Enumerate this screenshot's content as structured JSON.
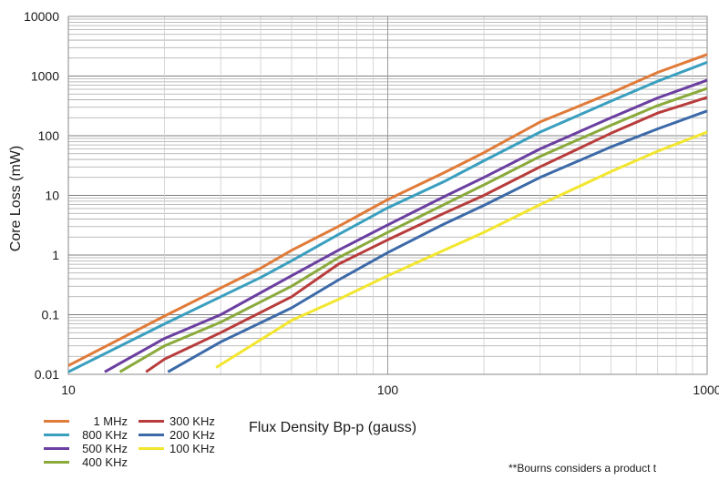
{
  "chart_data": {
    "type": "line",
    "title": "",
    "xlabel": "Flux Density Bp-p (gauss)",
    "ylabel": "Core Loss (mW)",
    "x_scale": "log",
    "y_scale": "log",
    "xlim": [
      10,
      1000
    ],
    "ylim": [
      0.01,
      10000
    ],
    "grid": true,
    "legend_placement": "bottom-left",
    "x_ticks": [
      "10",
      "100",
      "1000"
    ],
    "y_ticks": [
      "0.01",
      "0.1",
      "1",
      "10",
      "100",
      "1000",
      "10000"
    ],
    "series": [
      {
        "name": "1 MHz",
        "color": "#e07b39",
        "x": [
          10,
          20,
          30,
          40,
          50,
          70,
          100,
          150,
          200,
          300,
          500,
          700,
          1000
        ],
        "y": [
          0.014,
          0.095,
          0.28,
          0.6,
          1.2,
          3.0,
          8.5,
          24,
          52,
          170,
          520,
          1150,
          2300
        ]
      },
      {
        "name": "800 KHz",
        "color": "#3a9fbf",
        "x": [
          10,
          20,
          30,
          40,
          50,
          70,
          100,
          150,
          200,
          300,
          500,
          700,
          1000
        ],
        "y": [
          0.011,
          0.07,
          0.2,
          0.42,
          0.8,
          2.2,
          6.2,
          17,
          38,
          115,
          380,
          820,
          1700
        ]
      },
      {
        "name": "500 KHz",
        "color": "#6b3fa0",
        "x": [
          13,
          20,
          30,
          50,
          70,
          100,
          150,
          200,
          300,
          500,
          700,
          1000
        ],
        "y": [
          0.011,
          0.04,
          0.1,
          0.45,
          1.2,
          3.2,
          9.5,
          20,
          60,
          200,
          430,
          850
        ]
      },
      {
        "name": "400 KHz",
        "color": "#8aaa3c",
        "x": [
          14.5,
          20,
          30,
          50,
          70,
          100,
          150,
          200,
          300,
          500,
          700,
          1000
        ],
        "y": [
          0.011,
          0.03,
          0.075,
          0.3,
          0.9,
          2.4,
          7.0,
          15,
          45,
          150,
          320,
          620
        ]
      },
      {
        "name": "300 KHz",
        "color": "#b83c3c",
        "x": [
          17.5,
          20,
          30,
          50,
          70,
          100,
          150,
          200,
          300,
          500,
          700,
          1000
        ],
        "y": [
          0.011,
          0.018,
          0.05,
          0.2,
          0.7,
          1.8,
          5.0,
          10,
          30,
          110,
          240,
          440
        ]
      },
      {
        "name": "200 KHz",
        "color": "#3c6aa8",
        "x": [
          20.5,
          30,
          50,
          70,
          100,
          150,
          200,
          300,
          500,
          700,
          1000
        ],
        "y": [
          0.011,
          0.035,
          0.13,
          0.38,
          1.1,
          3.3,
          6.8,
          20,
          65,
          130,
          260
        ]
      },
      {
        "name": "100 KHz",
        "color": "#f2e62e",
        "x": [
          29,
          50,
          70,
          100,
          150,
          200,
          300,
          500,
          700,
          1000
        ],
        "y": [
          0.013,
          0.08,
          0.18,
          0.45,
          1.2,
          2.4,
          7,
          25,
          55,
          115
        ]
      }
    ]
  },
  "legend": {
    "col1": [
      {
        "label": "1 MHz",
        "color": "#e07b39"
      },
      {
        "label": "800 KHz",
        "color": "#3a9fbf"
      },
      {
        "label": "500 KHz",
        "color": "#6b3fa0"
      },
      {
        "label": "400 KHz",
        "color": "#8aaa3c"
      }
    ],
    "col2": [
      {
        "label": "300 KHz",
        "color": "#b83c3c"
      },
      {
        "label": "200 KHz",
        "color": "#3c6aa8"
      },
      {
        "label": "100 KHz",
        "color": "#f2e62e"
      }
    ]
  },
  "footnote": "**Bourns considers a product t"
}
